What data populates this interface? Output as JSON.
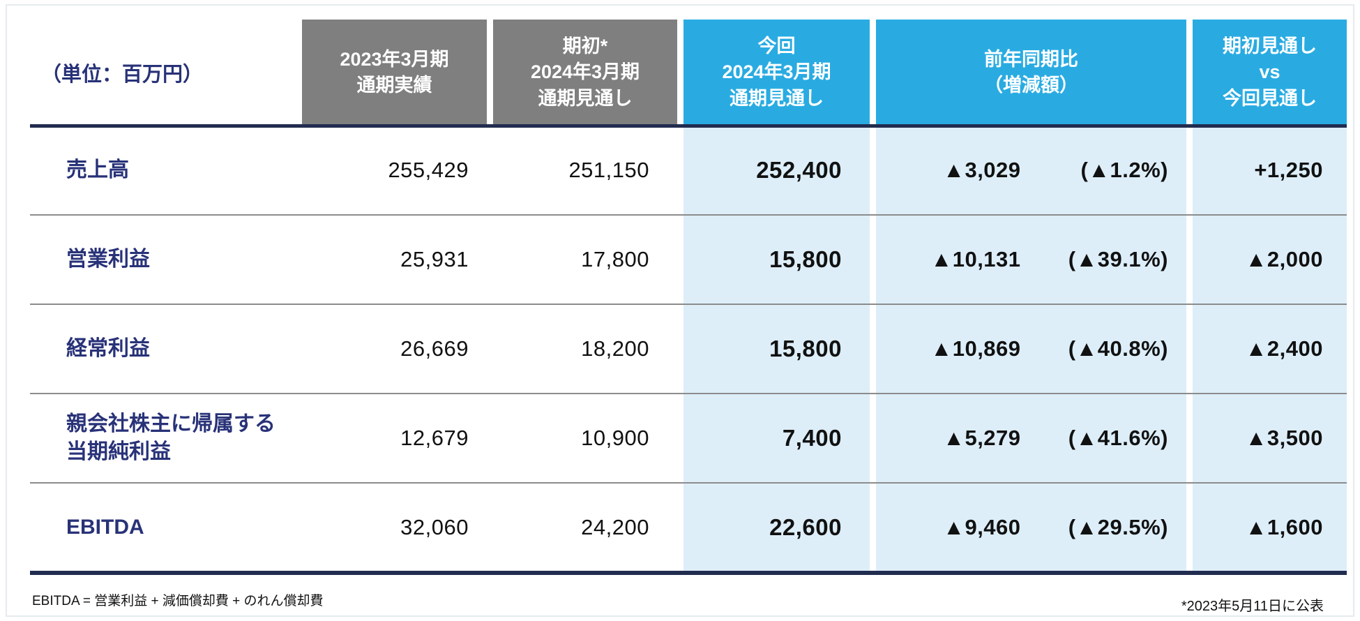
{
  "colors": {
    "header_gray": "#7f7f7f",
    "header_blue": "#29abe2",
    "highlight_light_blue": "#ddeef9",
    "label_navy": "#283278",
    "rule_navy": "#212c4f",
    "separator_gray": "#8c8c8c"
  },
  "chart_data": {
    "type": "table",
    "unit_label": "（単位：百万円）",
    "column_headers": [
      "2023年3月期\n通期実績",
      "期初*\n2024年3月期\n通期見通し",
      "今回\n2024年3月期\n通期見通し",
      "前年同期比\n（増減額）",
      "期初見通し\nvs\n今回見通し"
    ],
    "rows": [
      {
        "label": "売上高",
        "fy2023_actual": "255,429",
        "initial_forecast": "251,150",
        "current_forecast": "252,400",
        "yoy_change": "▲3,029",
        "yoy_change_pct": "(▲1.2%)",
        "vs_initial": "+1,250"
      },
      {
        "label": "営業利益",
        "fy2023_actual": "25,931",
        "initial_forecast": "17,800",
        "current_forecast": "15,800",
        "yoy_change": "▲10,131",
        "yoy_change_pct": "(▲39.1%)",
        "vs_initial": "▲2,000"
      },
      {
        "label": "経常利益",
        "fy2023_actual": "26,669",
        "initial_forecast": "18,200",
        "current_forecast": "15,800",
        "yoy_change": "▲10,869",
        "yoy_change_pct": "(▲40.8%)",
        "vs_initial": "▲2,400"
      },
      {
        "label": "親会社株主に帰属する\n当期純利益",
        "fy2023_actual": "12,679",
        "initial_forecast": "10,900",
        "current_forecast": "7,400",
        "yoy_change": "▲5,279",
        "yoy_change_pct": "(▲41.6%)",
        "vs_initial": "▲3,500"
      },
      {
        "label": "EBITDA",
        "fy2023_actual": "32,060",
        "initial_forecast": "24,200",
        "current_forecast": "22,600",
        "yoy_change": "▲9,460",
        "yoy_change_pct": "(▲29.5%)",
        "vs_initial": "▲1,600"
      }
    ],
    "footnote_left": "EBITDA = 営業利益 + 減価償却費 + のれん償却費",
    "footnote_right": "*2023年5月11日に公表"
  }
}
